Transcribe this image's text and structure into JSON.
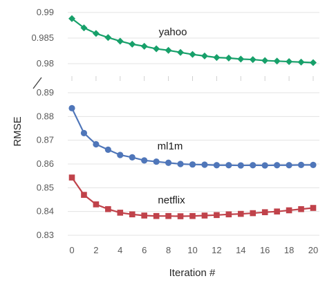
{
  "chart_data": {
    "type": "line",
    "xlabel": "Iteration #",
    "ylabel": "RMSE",
    "x": [
      0,
      1,
      2,
      3,
      4,
      5,
      6,
      7,
      8,
      9,
      10,
      11,
      12,
      13,
      14,
      15,
      16,
      17,
      18,
      19,
      20
    ],
    "x_ticks": [
      "0",
      "2",
      "4",
      "6",
      "8",
      "10",
      "12",
      "14",
      "16",
      "18",
      "20"
    ],
    "top_panel": {
      "ylim": [
        0.978,
        0.99
      ],
      "y_ticks": [
        "0.98",
        "0.985",
        "0.99"
      ],
      "series": [
        {
          "label": "yahoo",
          "color": "#17a06a",
          "marker": "diamond",
          "values": [
            0.9888,
            0.987,
            0.9859,
            0.9851,
            0.9844,
            0.9838,
            0.9834,
            0.9829,
            0.9826,
            0.9822,
            0.9818,
            0.9815,
            0.9812,
            0.9811,
            0.9809,
            0.9808,
            0.9806,
            0.9805,
            0.9804,
            0.9803,
            0.9802
          ]
        }
      ]
    },
    "bottom_panel": {
      "ylim": [
        0.83,
        0.89
      ],
      "y_ticks": [
        "0.83",
        "0.84",
        "0.85",
        "0.86",
        "0.87",
        "0.88",
        "0.89"
      ],
      "series": [
        {
          "label": "ml1m",
          "color": "#4f76b9",
          "marker": "circle",
          "values": [
            0.8835,
            0.873,
            0.8683,
            0.866,
            0.8638,
            0.8628,
            0.8615,
            0.861,
            0.8605,
            0.86,
            0.8598,
            0.8597,
            0.8595,
            0.8595,
            0.8594,
            0.8595,
            0.8594,
            0.8595,
            0.8595,
            0.8596,
            0.8596
          ]
        },
        {
          "label": "netflix",
          "color": "#c0424a",
          "marker": "square",
          "values": [
            0.8543,
            0.847,
            0.843,
            0.841,
            0.8395,
            0.8388,
            0.8383,
            0.8381,
            0.8381,
            0.838,
            0.8381,
            0.8383,
            0.8385,
            0.8388,
            0.839,
            0.8393,
            0.8397,
            0.84,
            0.8405,
            0.841,
            0.8415
          ]
        }
      ]
    },
    "axis_break": true,
    "grid": "horizontal"
  }
}
